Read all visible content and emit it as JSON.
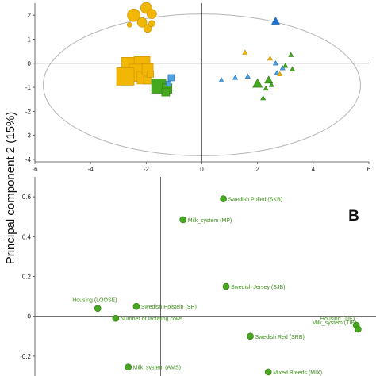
{
  "ylabel": "Principal component 2 (15%)",
  "colors": {
    "yellow": "#f2b705",
    "yellow_edge": "#c98d00",
    "green": "#46a81e",
    "green_edge": "#2e7a10",
    "blue": "#4fa3e0",
    "blue_edge": "#1d6fb8",
    "dark_blue": "#1f6fd1",
    "ellipse": "#b5b5b5",
    "axis": "#444444",
    "label_text": "#3f8f1c"
  },
  "chart_data": [
    {
      "type": "scatter",
      "panel": "A",
      "title": "",
      "xlabel": "",
      "ylabel": "Principal component 2 (15%)",
      "xlim": [
        -6,
        6
      ],
      "ylim": [
        -4.1,
        2.5
      ],
      "xticks": [
        "-6",
        "-4",
        "-2",
        "0",
        "2",
        "4",
        "6"
      ],
      "yticks": [
        "2",
        "1",
        "0",
        "-1",
        "-2",
        "-3",
        "-4"
      ],
      "xtick_values": [
        -6,
        -4,
        -2,
        0,
        2,
        4,
        6
      ],
      "ytick_values": [
        2,
        1,
        0,
        -1,
        -2,
        -3,
        -4
      ],
      "ellipse": {
        "cx": 0,
        "cy": -0.9,
        "rx": 5.7,
        "ry": 2.95
      },
      "points": [
        {
          "x": -2.0,
          "y": 2.3,
          "shape": "circle",
          "color": "yellow",
          "size": 7
        },
        {
          "x": -2.45,
          "y": 2.0,
          "shape": "circle",
          "color": "yellow",
          "size": 8
        },
        {
          "x": -1.8,
          "y": 2.05,
          "shape": "circle",
          "color": "yellow",
          "size": 6
        },
        {
          "x": -2.15,
          "y": 1.7,
          "shape": "circle",
          "color": "yellow",
          "size": 6
        },
        {
          "x": -1.95,
          "y": 1.45,
          "shape": "circle",
          "color": "yellow",
          "size": 5
        },
        {
          "x": -1.8,
          "y": 1.65,
          "shape": "circle",
          "color": "yellow",
          "size": 4
        },
        {
          "x": -2.6,
          "y": 1.6,
          "shape": "circle",
          "color": "yellow",
          "size": 3
        },
        {
          "x": -2.55,
          "y": -0.15,
          "shape": "square",
          "color": "yellow",
          "size": 12
        },
        {
          "x": -2.15,
          "y": -0.05,
          "shape": "square",
          "color": "yellow",
          "size": 10
        },
        {
          "x": -2.3,
          "y": -0.4,
          "shape": "square",
          "color": "yellow",
          "size": 11
        },
        {
          "x": -2.75,
          "y": -0.55,
          "shape": "square",
          "color": "yellow",
          "size": 11
        },
        {
          "x": -2.1,
          "y": -0.6,
          "shape": "square",
          "color": "yellow",
          "size": 8
        },
        {
          "x": -1.95,
          "y": -0.25,
          "shape": "square",
          "color": "yellow",
          "size": 7
        },
        {
          "x": -1.95,
          "y": -0.7,
          "shape": "square",
          "color": "yellow",
          "size": 5
        },
        {
          "x": -1.85,
          "y": -0.45,
          "shape": "square",
          "color": "yellow",
          "size": 4
        },
        {
          "x": -1.55,
          "y": -0.95,
          "shape": "square",
          "color": "green",
          "size": 9
        },
        {
          "x": -1.25,
          "y": -1.05,
          "shape": "square",
          "color": "green",
          "size": 6
        },
        {
          "x": -1.3,
          "y": -1.2,
          "shape": "square",
          "color": "green",
          "size": 5
        },
        {
          "x": -1.1,
          "y": -0.6,
          "shape": "square",
          "color": "blue",
          "size": 4
        },
        {
          "x": -1.2,
          "y": -0.85,
          "shape": "square",
          "color": "blue",
          "size": 3
        },
        {
          "x": 2.65,
          "y": 1.75,
          "shape": "triangle",
          "color": "dark_blue",
          "size": 5
        },
        {
          "x": 1.55,
          "y": 0.45,
          "shape": "triangle",
          "color": "yellow",
          "size": 3
        },
        {
          "x": 2.45,
          "y": 0.2,
          "shape": "triangle",
          "color": "yellow",
          "size": 3
        },
        {
          "x": 3.2,
          "y": 0.35,
          "shape": "triangle",
          "color": "green",
          "size": 3
        },
        {
          "x": 2.65,
          "y": -0.0,
          "shape": "triangle",
          "color": "blue",
          "size": 3
        },
        {
          "x": 2.7,
          "y": -0.4,
          "shape": "triangle",
          "color": "blue",
          "size": 3
        },
        {
          "x": 2.9,
          "y": -0.2,
          "shape": "triangle",
          "color": "blue",
          "size": 3
        },
        {
          "x": 3.0,
          "y": -0.1,
          "shape": "triangle",
          "color": "green",
          "size": 3
        },
        {
          "x": 3.25,
          "y": -0.25,
          "shape": "triangle",
          "color": "green",
          "size": 3
        },
        {
          "x": 2.0,
          "y": -0.85,
          "shape": "triangle",
          "color": "green",
          "size": 6
        },
        {
          "x": 2.4,
          "y": -0.7,
          "shape": "triangle",
          "color": "green",
          "size": 5
        },
        {
          "x": 2.3,
          "y": -1.05,
          "shape": "triangle",
          "color": "green",
          "size": 3
        },
        {
          "x": 2.5,
          "y": -0.9,
          "shape": "triangle",
          "color": "green",
          "size": 3
        },
        {
          "x": 2.2,
          "y": -1.45,
          "shape": "triangle",
          "color": "green",
          "size": 3
        },
        {
          "x": 1.65,
          "y": -0.55,
          "shape": "triangle",
          "color": "blue",
          "size": 3
        },
        {
          "x": 0.7,
          "y": -0.7,
          "shape": "triangle",
          "color": "blue",
          "size": 3
        },
        {
          "x": 1.2,
          "y": -0.6,
          "shape": "triangle",
          "color": "blue",
          "size": 3
        },
        {
          "x": 2.8,
          "y": -0.45,
          "shape": "triangle",
          "color": "yellow",
          "size": 3
        }
      ]
    },
    {
      "type": "scatter",
      "panel": "B",
      "title": "",
      "xlim": [
        -0.14,
        0.24
      ],
      "ylim": [
        -0.3,
        0.7
      ],
      "yticks": [
        "0.6",
        "0.4",
        "0.2",
        "0",
        "-0.2"
      ],
      "ytick_values": [
        0.6,
        0.4,
        0.2,
        0,
        -0.2
      ],
      "points": [
        {
          "x": 0.07,
          "y": 0.59,
          "label": "Swedish Polled (SKB)"
        },
        {
          "x": 0.025,
          "y": 0.485,
          "label": "Milk_system (MP)"
        },
        {
          "x": 0.073,
          "y": 0.15,
          "label": "Swedish Jersey (SJB)"
        },
        {
          "x": -0.07,
          "y": 0.04,
          "label": "Housing (LOOSE)"
        },
        {
          "x": -0.027,
          "y": 0.05,
          "label": "Swedish Holstein (SH)"
        },
        {
          "x": -0.05,
          "y": -0.01,
          "label": "Number of lactating cows"
        },
        {
          "x": 0.218,
          "y": -0.045,
          "label": "Housing (TIE)"
        },
        {
          "x": 0.22,
          "y": -0.065,
          "label": "Milk_system (TIE)"
        },
        {
          "x": 0.1,
          "y": -0.1,
          "label": "Swedish Red (SRB)"
        },
        {
          "x": -0.036,
          "y": -0.255,
          "label": "Milk_system (AMS)"
        },
        {
          "x": 0.12,
          "y": -0.28,
          "label": "Mixed Breeds (MIX)"
        }
      ],
      "annotation": "B"
    }
  ]
}
